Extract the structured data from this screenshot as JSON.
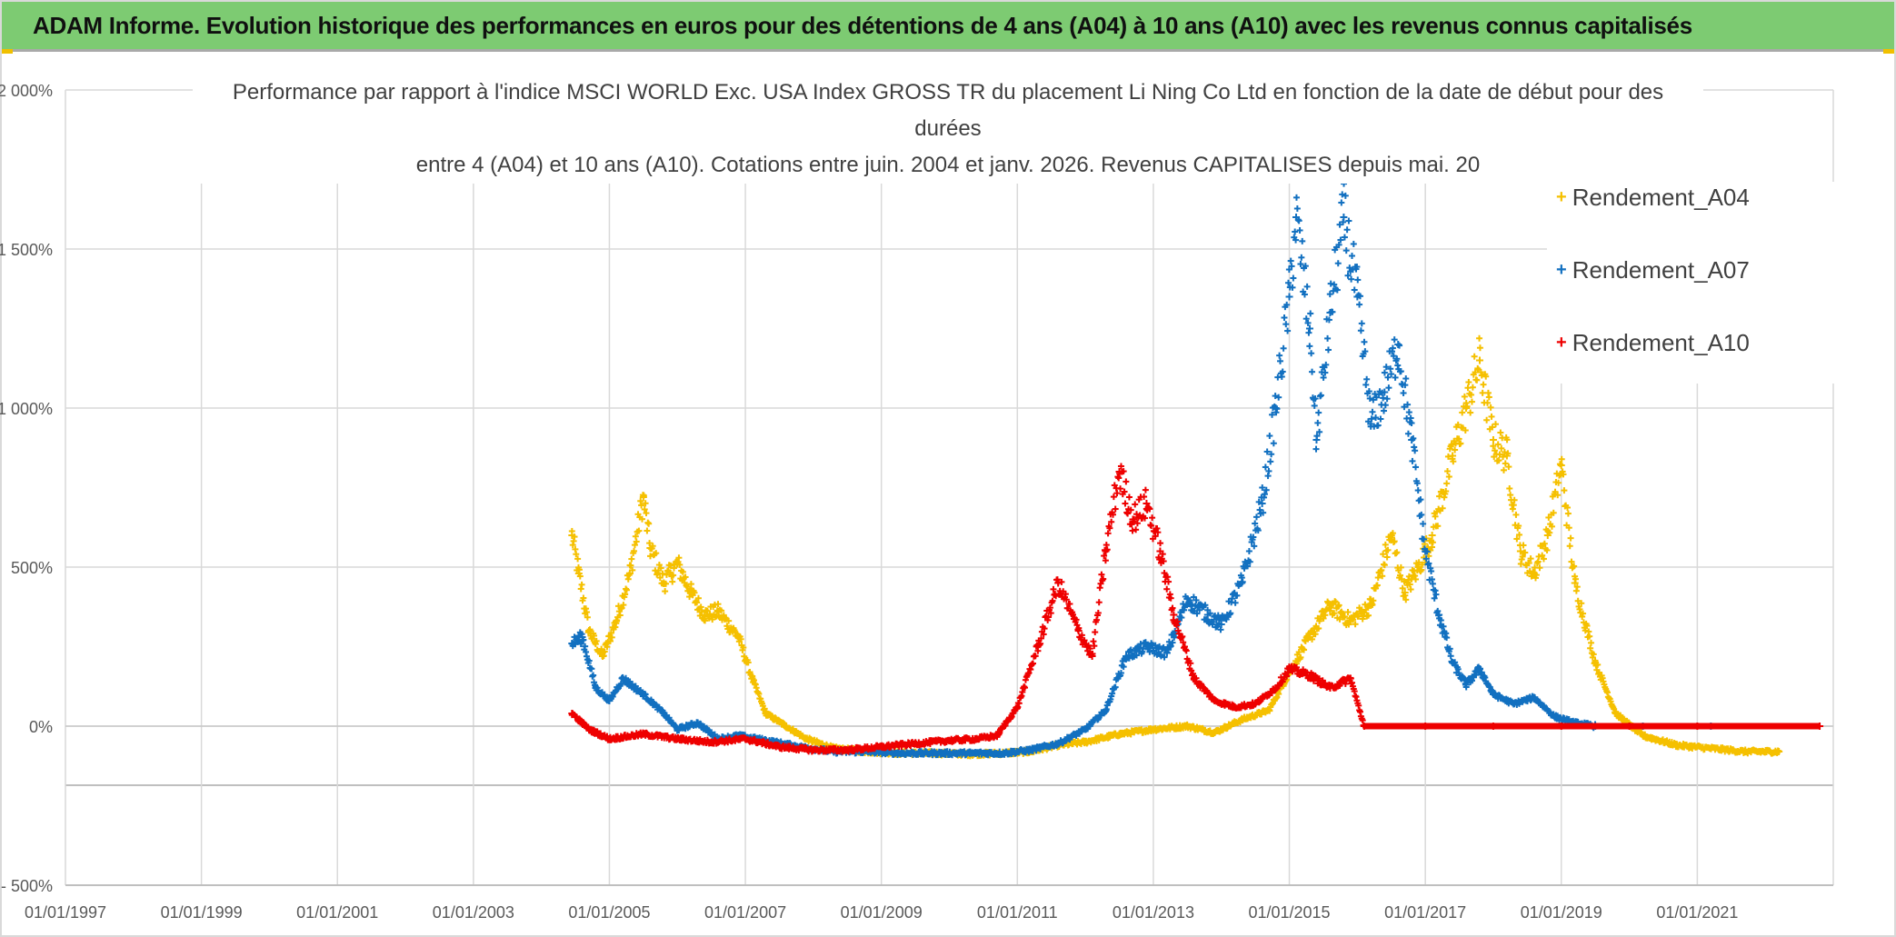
{
  "banner": {
    "title": "ADAM Informe. Evolution historique des performances en euros pour des détentions de 4 ans (A04) à 10 ans (A10) avec les revenus connus capitalisés"
  },
  "colors": {
    "banner_bg": "#7dcb72",
    "Rendement_A04": "#f5c000",
    "Rendement_A07": "#1270c0",
    "Rendement_A10": "#ee0000",
    "grid": "#d9d9d9",
    "axis_text": "#595959"
  },
  "chart_data": {
    "type": "scatter",
    "title_lines": [
      "Performance par rapport à l'indice MSCI WORLD Exc. USA Index GROSS TR  du placement Li Ning Co Ltd en fonction de la date de début pour des",
      "durées",
      "entre 4 (A04) et 10 ans (A10). Cotations entre juin. 2004 et janv. 2026. Revenus CAPITALISES depuis mai. 20"
    ],
    "y_axis": {
      "min": -500,
      "max": 2000,
      "unit": "%",
      "ticks": [
        -500,
        0,
        500,
        1000,
        1500,
        2000
      ],
      "tick_labels": [
        "- 500%",
        "0%",
        "500%",
        "1 000%",
        "1 500%",
        "2 000%"
      ]
    },
    "x_axis": {
      "min": 1997.0,
      "max": 2023.0,
      "ticks": [
        1997,
        1999,
        2001,
        2003,
        2005,
        2007,
        2009,
        2011,
        2013,
        2015,
        2017,
        2019,
        2021
      ],
      "tick_labels": [
        "01/01/1997",
        "01/01/1999",
        "01/01/2001",
        "01/01/2003",
        "01/01/2005",
        "01/01/2007",
        "01/01/2009",
        "01/01/2011",
        "01/01/2013",
        "01/01/2015",
        "01/01/2017",
        "01/01/2019",
        "01/01/2021"
      ]
    },
    "legend": [
      "Rendement_A04",
      "Rendement_A07",
      "Rendement_A10"
    ],
    "series": [
      {
        "name": "Rendement_A04",
        "points": [
          [
            2004.45,
            600
          ],
          [
            2004.55,
            480
          ],
          [
            2004.7,
            300
          ],
          [
            2004.9,
            220
          ],
          [
            2005.1,
            330
          ],
          [
            2005.3,
            480
          ],
          [
            2005.5,
            720
          ],
          [
            2005.6,
            560
          ],
          [
            2005.8,
            450
          ],
          [
            2006.0,
            510
          ],
          [
            2006.2,
            420
          ],
          [
            2006.4,
            350
          ],
          [
            2006.6,
            360
          ],
          [
            2006.9,
            280
          ],
          [
            2007.1,
            150
          ],
          [
            2007.3,
            40
          ],
          [
            2007.6,
            0
          ],
          [
            2007.9,
            -40
          ],
          [
            2008.3,
            -70
          ],
          [
            2008.8,
            -80
          ],
          [
            2009.3,
            -85
          ],
          [
            2009.8,
            -85
          ],
          [
            2010.3,
            -88
          ],
          [
            2010.8,
            -85
          ],
          [
            2011.2,
            -80
          ],
          [
            2011.6,
            -60
          ],
          [
            2012.0,
            -50
          ],
          [
            2012.5,
            -25
          ],
          [
            2013.0,
            -10
          ],
          [
            2013.5,
            0
          ],
          [
            2013.9,
            -20
          ],
          [
            2014.3,
            20
          ],
          [
            2014.7,
            50
          ],
          [
            2015.0,
            170
          ],
          [
            2015.3,
            280
          ],
          [
            2015.6,
            380
          ],
          [
            2015.9,
            330
          ],
          [
            2016.2,
            380
          ],
          [
            2016.5,
            600
          ],
          [
            2016.7,
            420
          ],
          [
            2016.9,
            500
          ],
          [
            2017.1,
            600
          ],
          [
            2017.4,
            850
          ],
          [
            2017.6,
            1000
          ],
          [
            2017.8,
            1150
          ],
          [
            2018.0,
            900
          ],
          [
            2018.2,
            850
          ],
          [
            2018.4,
            550
          ],
          [
            2018.6,
            480
          ],
          [
            2018.8,
            600
          ],
          [
            2019.0,
            820
          ],
          [
            2019.2,
            450
          ],
          [
            2019.5,
            200
          ],
          [
            2019.8,
            40
          ],
          [
            2020.2,
            -30
          ],
          [
            2020.7,
            -60
          ],
          [
            2021.2,
            -70
          ],
          [
            2021.7,
            -80
          ],
          [
            2022.2,
            -80
          ]
        ]
      },
      {
        "name": "Rendement_A07",
        "points": [
          [
            2004.45,
            260
          ],
          [
            2004.6,
            280
          ],
          [
            2004.8,
            120
          ],
          [
            2005.0,
            80
          ],
          [
            2005.2,
            150
          ],
          [
            2005.5,
            100
          ],
          [
            2005.8,
            40
          ],
          [
            2006.0,
            -10
          ],
          [
            2006.3,
            10
          ],
          [
            2006.6,
            -40
          ],
          [
            2006.9,
            -30
          ],
          [
            2007.3,
            -45
          ],
          [
            2007.8,
            -65
          ],
          [
            2008.3,
            -80
          ],
          [
            2008.8,
            -80
          ],
          [
            2009.3,
            -85
          ],
          [
            2009.8,
            -85
          ],
          [
            2010.3,
            -85
          ],
          [
            2010.8,
            -85
          ],
          [
            2011.2,
            -75
          ],
          [
            2011.6,
            -55
          ],
          [
            2012.0,
            -10
          ],
          [
            2012.3,
            50
          ],
          [
            2012.6,
            220
          ],
          [
            2012.9,
            250
          ],
          [
            2013.2,
            230
          ],
          [
            2013.5,
            400
          ],
          [
            2013.8,
            350
          ],
          [
            2014.0,
            320
          ],
          [
            2014.3,
            450
          ],
          [
            2014.6,
            700
          ],
          [
            2014.8,
            1000
          ],
          [
            2015.0,
            1350
          ],
          [
            2015.1,
            1600
          ],
          [
            2015.3,
            1250
          ],
          [
            2015.4,
            900
          ],
          [
            2015.6,
            1300
          ],
          [
            2015.8,
            1600
          ],
          [
            2016.0,
            1350
          ],
          [
            2016.2,
            950
          ],
          [
            2016.4,
            1050
          ],
          [
            2016.6,
            1200
          ],
          [
            2016.8,
            900
          ],
          [
            2017.0,
            550
          ],
          [
            2017.2,
            350
          ],
          [
            2017.4,
            200
          ],
          [
            2017.6,
            130
          ],
          [
            2017.8,
            180
          ],
          [
            2018.0,
            100
          ],
          [
            2018.3,
            70
          ],
          [
            2018.6,
            90
          ],
          [
            2018.9,
            30
          ],
          [
            2019.2,
            10
          ],
          [
            2019.5,
            0
          ],
          [
            2020.2,
            0
          ],
          [
            2021.2,
            0
          ],
          [
            2022.8,
            0
          ]
        ]
      },
      {
        "name": "Rendement_A10",
        "points": [
          [
            2004.45,
            40
          ],
          [
            2004.7,
            -10
          ],
          [
            2005.0,
            -40
          ],
          [
            2005.5,
            -25
          ],
          [
            2006.0,
            -40
          ],
          [
            2006.5,
            -50
          ],
          [
            2007.0,
            -40
          ],
          [
            2007.5,
            -65
          ],
          [
            2008.0,
            -75
          ],
          [
            2008.5,
            -75
          ],
          [
            2009.0,
            -65
          ],
          [
            2009.5,
            -55
          ],
          [
            2010.0,
            -45
          ],
          [
            2010.4,
            -40
          ],
          [
            2010.7,
            -30
          ],
          [
            2011.0,
            60
          ],
          [
            2011.3,
            250
          ],
          [
            2011.6,
            450
          ],
          [
            2011.9,
            300
          ],
          [
            2012.1,
            220
          ],
          [
            2012.3,
            550
          ],
          [
            2012.5,
            800
          ],
          [
            2012.7,
            650
          ],
          [
            2012.9,
            700
          ],
          [
            2013.1,
            550
          ],
          [
            2013.3,
            350
          ],
          [
            2013.6,
            150
          ],
          [
            2013.9,
            80
          ],
          [
            2014.2,
            60
          ],
          [
            2014.5,
            70
          ],
          [
            2014.8,
            120
          ],
          [
            2015.0,
            180
          ],
          [
            2015.3,
            160
          ],
          [
            2015.6,
            120
          ],
          [
            2015.9,
            150
          ],
          [
            2016.1,
            0
          ],
          [
            2017.0,
            0
          ],
          [
            2018.0,
            0
          ],
          [
            2019.0,
            0
          ],
          [
            2020.0,
            0
          ],
          [
            2021.0,
            0
          ],
          [
            2022.8,
            0
          ]
        ]
      }
    ]
  }
}
